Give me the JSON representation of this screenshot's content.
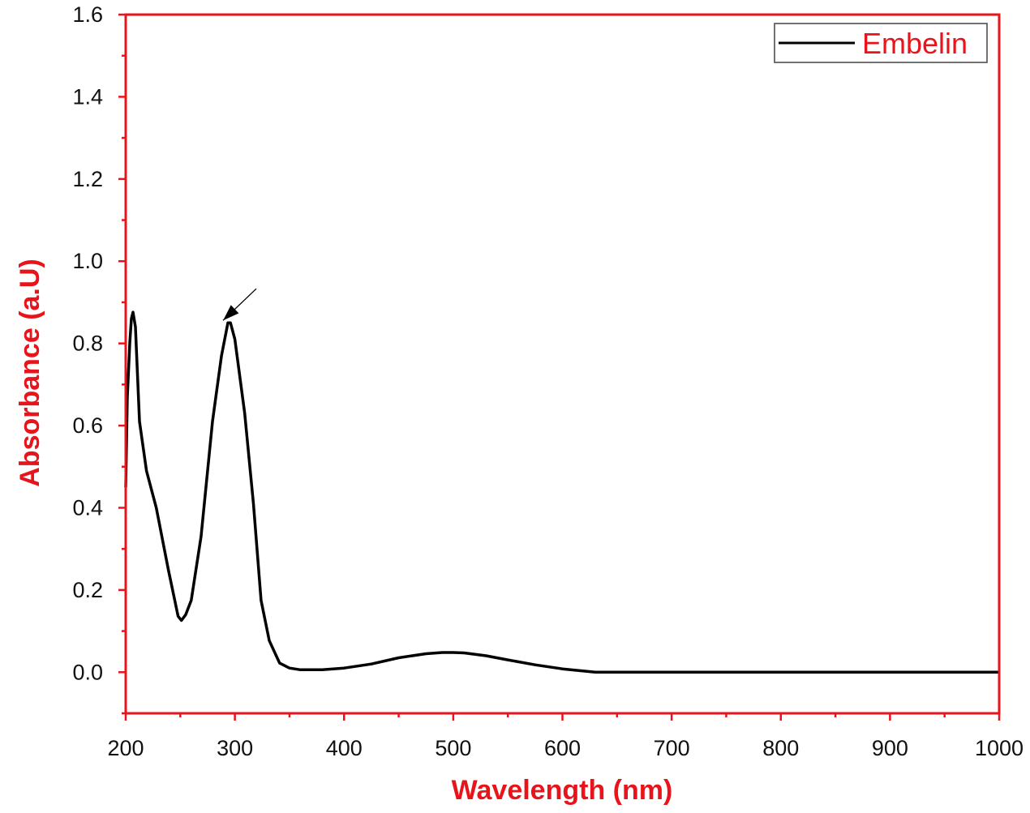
{
  "chart_data": {
    "type": "line",
    "title": "",
    "xlabel": "Wavelength (nm)",
    "ylabel": "Absorbance (a.U)",
    "xlim": [
      200,
      1000
    ],
    "ylim": [
      -0.1,
      1.6
    ],
    "x_ticks": [
      200,
      300,
      400,
      500,
      600,
      700,
      800,
      900,
      1000
    ],
    "x_tick_labels": [
      "200",
      "300",
      "400",
      "500",
      "600",
      "700",
      "800",
      "900",
      "1000"
    ],
    "y_ticks": [
      0.0,
      0.2,
      0.4,
      0.6,
      0.8,
      1.0,
      1.2,
      1.4,
      1.6
    ],
    "y_tick_labels": [
      "0.0",
      "0.2",
      "0.4",
      "0.6",
      "0.8",
      "1.0",
      "1.2",
      "1.4",
      "1.6"
    ],
    "x_minor_step": 50,
    "y_minor_step": 0.1,
    "grid": false,
    "legend_position": "top-right",
    "axis_color": "#e8141b",
    "series": [
      {
        "name": "Embelin",
        "color": "#000000",
        "x": [
          200,
          201.5,
          203.7,
          205.2,
          206.7,
          208.9,
          212.6,
          219,
          228,
          239,
          248,
          251,
          255,
          260,
          269,
          279.5,
          287.7,
          293.6,
          296,
          300,
          309,
          317,
          324,
          331.5,
          341,
          350,
          360,
          380,
          400,
          425,
          450,
          475,
          490,
          500,
          510,
          530,
          550,
          575,
          600,
          630,
          700,
          800,
          900,
          950,
          1000
        ],
        "y": [
          0.45,
          0.67,
          0.8,
          0.86,
          0.876,
          0.84,
          0.61,
          0.49,
          0.4,
          0.25,
          0.136,
          0.126,
          0.14,
          0.175,
          0.33,
          0.61,
          0.77,
          0.85,
          0.85,
          0.81,
          0.63,
          0.41,
          0.175,
          0.077,
          0.022,
          0.01,
          0.006,
          0.006,
          0.01,
          0.02,
          0.035,
          0.045,
          0.048,
          0.048,
          0.047,
          0.04,
          0.03,
          0.018,
          0.008,
          0.0,
          0.0,
          0.0,
          0.0,
          0.0,
          0.0
        ]
      }
    ],
    "annotations": [
      {
        "type": "arrow",
        "from": [
          319.6,
          0.933
        ],
        "to": [
          289.2,
          0.856
        ]
      }
    ]
  }
}
